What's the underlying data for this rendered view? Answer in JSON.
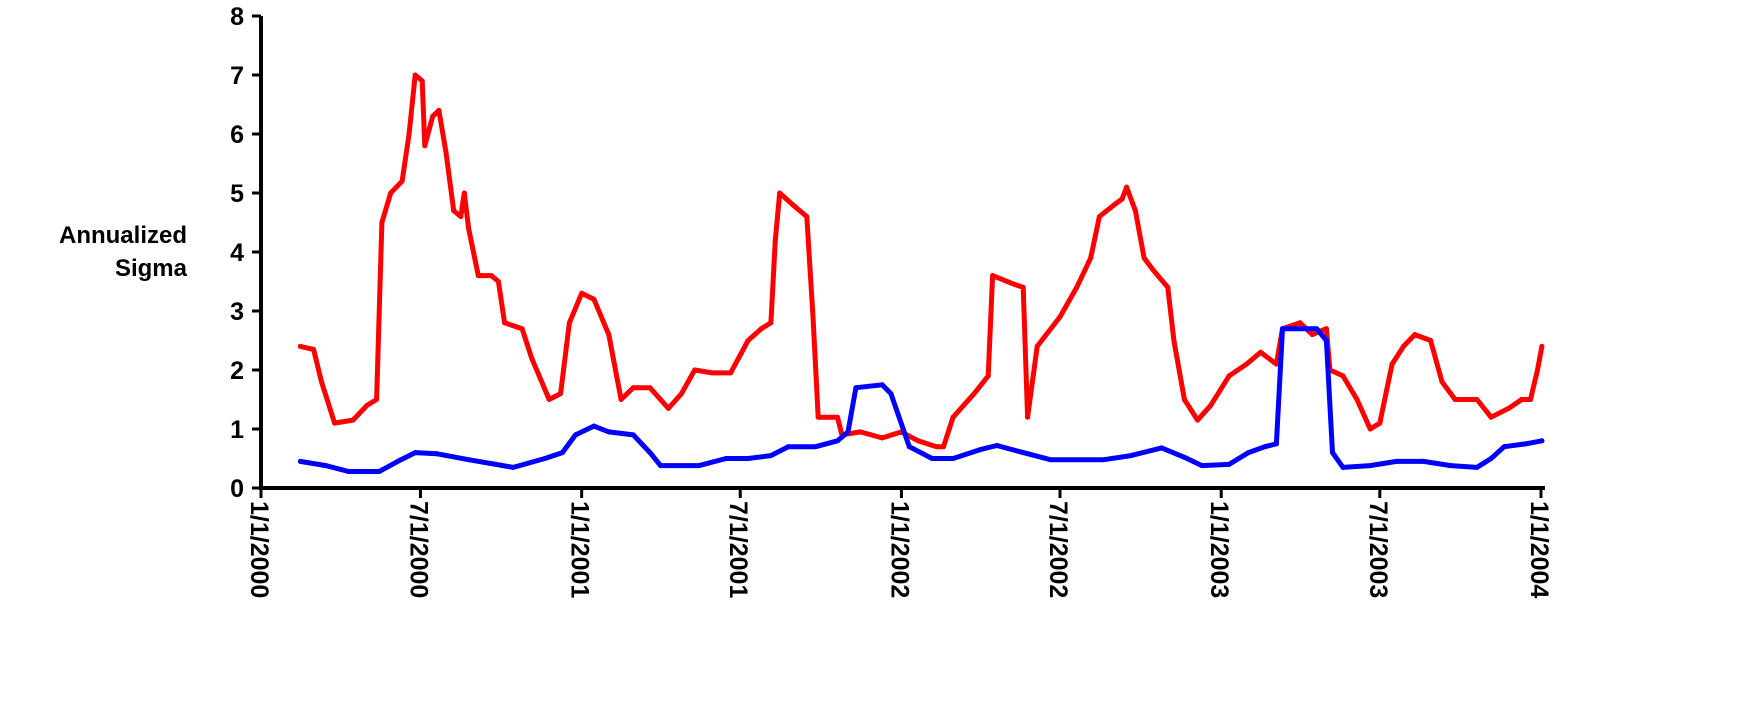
{
  "chart_data": {
    "type": "line",
    "ylabel_lines": [
      "Annualized",
      "Sigma"
    ],
    "ylim": [
      0,
      8
    ],
    "y_ticks": [
      0,
      1,
      2,
      3,
      4,
      5,
      6,
      7,
      8
    ],
    "x_range": [
      "2000-01-01",
      "2004-01-01"
    ],
    "x_ticks": [
      {
        "date": "2000-01-01",
        "label": "1/1/2000"
      },
      {
        "date": "2000-07-01",
        "label": "7/1/2000"
      },
      {
        "date": "2001-01-01",
        "label": "1/1/2001"
      },
      {
        "date": "2001-07-01",
        "label": "7/1/2001"
      },
      {
        "date": "2002-01-01",
        "label": "1/1/2002"
      },
      {
        "date": "2002-07-01",
        "label": "7/1/2002"
      },
      {
        "date": "2003-01-01",
        "label": "1/1/2003"
      },
      {
        "date": "2003-07-01",
        "label": "7/1/2003"
      },
      {
        "date": "2004-01-01",
        "label": "1/1/2004"
      }
    ],
    "grid": false,
    "legend": "none",
    "series": [
      {
        "color": "#ff0000",
        "points": [
          [
            "2000-02-15",
            2.4
          ],
          [
            "2000-03-01",
            2.35
          ],
          [
            "2000-03-10",
            1.8
          ],
          [
            "2000-03-25",
            1.1
          ],
          [
            "2000-04-15",
            1.15
          ],
          [
            "2000-05-01",
            1.4
          ],
          [
            "2000-05-12",
            1.5
          ],
          [
            "2000-05-18",
            4.5
          ],
          [
            "2000-05-28",
            5.0
          ],
          [
            "2000-06-10",
            5.2
          ],
          [
            "2000-06-18",
            6.0
          ],
          [
            "2000-06-25",
            7.0
          ],
          [
            "2000-07-03",
            6.9
          ],
          [
            "2000-07-06",
            5.8
          ],
          [
            "2000-07-15",
            6.3
          ],
          [
            "2000-07-22",
            6.4
          ],
          [
            "2000-07-30",
            5.7
          ],
          [
            "2000-08-08",
            4.7
          ],
          [
            "2000-08-16",
            4.6
          ],
          [
            "2000-08-20",
            5.0
          ],
          [
            "2000-08-25",
            4.4
          ],
          [
            "2000-09-05",
            3.6
          ],
          [
            "2000-09-20",
            3.6
          ],
          [
            "2000-09-28",
            3.5
          ],
          [
            "2000-10-05",
            2.8
          ],
          [
            "2000-10-25",
            2.7
          ],
          [
            "2000-11-05",
            2.2
          ],
          [
            "2000-11-25",
            1.5
          ],
          [
            "2000-12-08",
            1.6
          ],
          [
            "2000-12-18",
            2.8
          ],
          [
            "2001-01-01",
            3.3
          ],
          [
            "2001-01-15",
            3.2
          ],
          [
            "2001-02-01",
            2.6
          ],
          [
            "2001-02-15",
            1.5
          ],
          [
            "2001-03-01",
            1.7
          ],
          [
            "2001-03-20",
            1.7
          ],
          [
            "2001-04-10",
            1.35
          ],
          [
            "2001-04-25",
            1.6
          ],
          [
            "2001-05-10",
            2.0
          ],
          [
            "2001-05-30",
            1.95
          ],
          [
            "2001-06-20",
            1.95
          ],
          [
            "2001-07-10",
            2.5
          ],
          [
            "2001-07-25",
            2.7
          ],
          [
            "2001-08-05",
            2.8
          ],
          [
            "2001-08-10",
            4.2
          ],
          [
            "2001-08-15",
            5.0
          ],
          [
            "2001-08-30",
            4.8
          ],
          [
            "2001-09-15",
            4.6
          ],
          [
            "2001-09-22",
            2.9
          ],
          [
            "2001-09-28",
            1.2
          ],
          [
            "2001-10-10",
            1.2
          ],
          [
            "2001-10-20",
            1.2
          ],
          [
            "2001-10-25",
            0.9
          ],
          [
            "2001-11-15",
            0.95
          ],
          [
            "2001-12-10",
            0.85
          ],
          [
            "2002-01-01",
            0.95
          ],
          [
            "2002-01-20",
            0.8
          ],
          [
            "2002-02-10",
            0.7
          ],
          [
            "2002-02-18",
            0.7
          ],
          [
            "2002-03-01",
            1.2
          ],
          [
            "2002-03-25",
            1.6
          ],
          [
            "2002-04-10",
            1.9
          ],
          [
            "2002-04-15",
            3.6
          ],
          [
            "2002-05-10",
            3.45
          ],
          [
            "2002-05-20",
            3.4
          ],
          [
            "2002-05-25",
            1.2
          ],
          [
            "2002-06-05",
            2.4
          ],
          [
            "2002-07-01",
            2.9
          ],
          [
            "2002-07-20",
            3.4
          ],
          [
            "2002-08-05",
            3.9
          ],
          [
            "2002-08-15",
            4.6
          ],
          [
            "2002-09-01",
            4.8
          ],
          [
            "2002-09-10",
            4.9
          ],
          [
            "2002-09-15",
            5.1
          ],
          [
            "2002-09-25",
            4.7
          ],
          [
            "2002-10-05",
            3.9
          ],
          [
            "2002-10-15",
            3.7
          ],
          [
            "2002-11-01",
            3.4
          ],
          [
            "2002-11-08",
            2.5
          ],
          [
            "2002-11-20",
            1.5
          ],
          [
            "2002-12-05",
            1.15
          ],
          [
            "2002-12-20",
            1.4
          ],
          [
            "2003-01-10",
            1.9
          ],
          [
            "2003-01-30",
            2.1
          ],
          [
            "2003-02-15",
            2.3
          ],
          [
            "2003-03-05",
            2.1
          ],
          [
            "2003-03-12",
            2.7
          ],
          [
            "2003-04-01",
            2.8
          ],
          [
            "2003-04-15",
            2.6
          ],
          [
            "2003-05-01",
            2.7
          ],
          [
            "2003-05-05",
            2.0
          ],
          [
            "2003-05-20",
            1.9
          ],
          [
            "2003-06-05",
            1.5
          ],
          [
            "2003-06-20",
            1.0
          ],
          [
            "2003-07-01",
            1.1
          ],
          [
            "2003-07-15",
            2.1
          ],
          [
            "2003-07-28",
            2.4
          ],
          [
            "2003-08-10",
            2.6
          ],
          [
            "2003-08-28",
            2.5
          ],
          [
            "2003-09-10",
            1.8
          ],
          [
            "2003-09-25",
            1.5
          ],
          [
            "2003-10-20",
            1.5
          ],
          [
            "2003-11-05",
            1.2
          ],
          [
            "2003-11-25",
            1.35
          ],
          [
            "2003-12-10",
            1.5
          ],
          [
            "2003-12-20",
            1.5
          ],
          [
            "2003-12-28",
            2.0
          ],
          [
            "2004-01-02",
            2.4
          ]
        ]
      },
      {
        "color": "#0000ff",
        "points": [
          [
            "2000-02-15",
            0.45
          ],
          [
            "2000-03-15",
            0.38
          ],
          [
            "2000-04-10",
            0.28
          ],
          [
            "2000-05-15",
            0.28
          ],
          [
            "2000-06-05",
            0.45
          ],
          [
            "2000-06-25",
            0.6
          ],
          [
            "2000-07-20",
            0.58
          ],
          [
            "2000-08-25",
            0.48
          ],
          [
            "2000-09-25",
            0.4
          ],
          [
            "2000-10-15",
            0.35
          ],
          [
            "2000-11-20",
            0.5
          ],
          [
            "2000-12-10",
            0.6
          ],
          [
            "2000-12-25",
            0.9
          ],
          [
            "2001-01-15",
            1.05
          ],
          [
            "2001-02-01",
            0.95
          ],
          [
            "2001-03-01",
            0.9
          ],
          [
            "2001-03-20",
            0.6
          ],
          [
            "2001-04-01",
            0.38
          ],
          [
            "2001-05-15",
            0.38
          ],
          [
            "2001-06-15",
            0.5
          ],
          [
            "2001-07-10",
            0.5
          ],
          [
            "2001-08-05",
            0.55
          ],
          [
            "2001-08-25",
            0.7
          ],
          [
            "2001-09-25",
            0.7
          ],
          [
            "2001-10-20",
            0.8
          ],
          [
            "2001-11-01",
            0.95
          ],
          [
            "2001-11-10",
            1.7
          ],
          [
            "2001-12-10",
            1.75
          ],
          [
            "2001-12-20",
            1.6
          ],
          [
            "2002-01-10",
            0.7
          ],
          [
            "2002-02-05",
            0.5
          ],
          [
            "2002-03-01",
            0.5
          ],
          [
            "2002-04-01",
            0.65
          ],
          [
            "2002-04-20",
            0.72
          ],
          [
            "2002-05-20",
            0.6
          ],
          [
            "2002-06-20",
            0.48
          ],
          [
            "2002-07-20",
            0.48
          ],
          [
            "2002-08-20",
            0.48
          ],
          [
            "2002-09-20",
            0.55
          ],
          [
            "2002-10-25",
            0.68
          ],
          [
            "2002-11-20",
            0.52
          ],
          [
            "2002-12-10",
            0.38
          ],
          [
            "2003-01-10",
            0.4
          ],
          [
            "2003-02-01",
            0.6
          ],
          [
            "2003-02-20",
            0.7
          ],
          [
            "2003-03-05",
            0.75
          ],
          [
            "2003-03-12",
            2.7
          ],
          [
            "2003-04-20",
            2.7
          ],
          [
            "2003-05-01",
            2.5
          ],
          [
            "2003-05-08",
            0.6
          ],
          [
            "2003-05-20",
            0.35
          ],
          [
            "2003-06-20",
            0.38
          ],
          [
            "2003-07-20",
            0.45
          ],
          [
            "2003-08-20",
            0.45
          ],
          [
            "2003-09-20",
            0.38
          ],
          [
            "2003-10-20",
            0.35
          ],
          [
            "2003-11-05",
            0.5
          ],
          [
            "2003-11-20",
            0.7
          ],
          [
            "2003-12-15",
            0.75
          ],
          [
            "2004-01-02",
            0.8
          ]
        ]
      }
    ]
  }
}
